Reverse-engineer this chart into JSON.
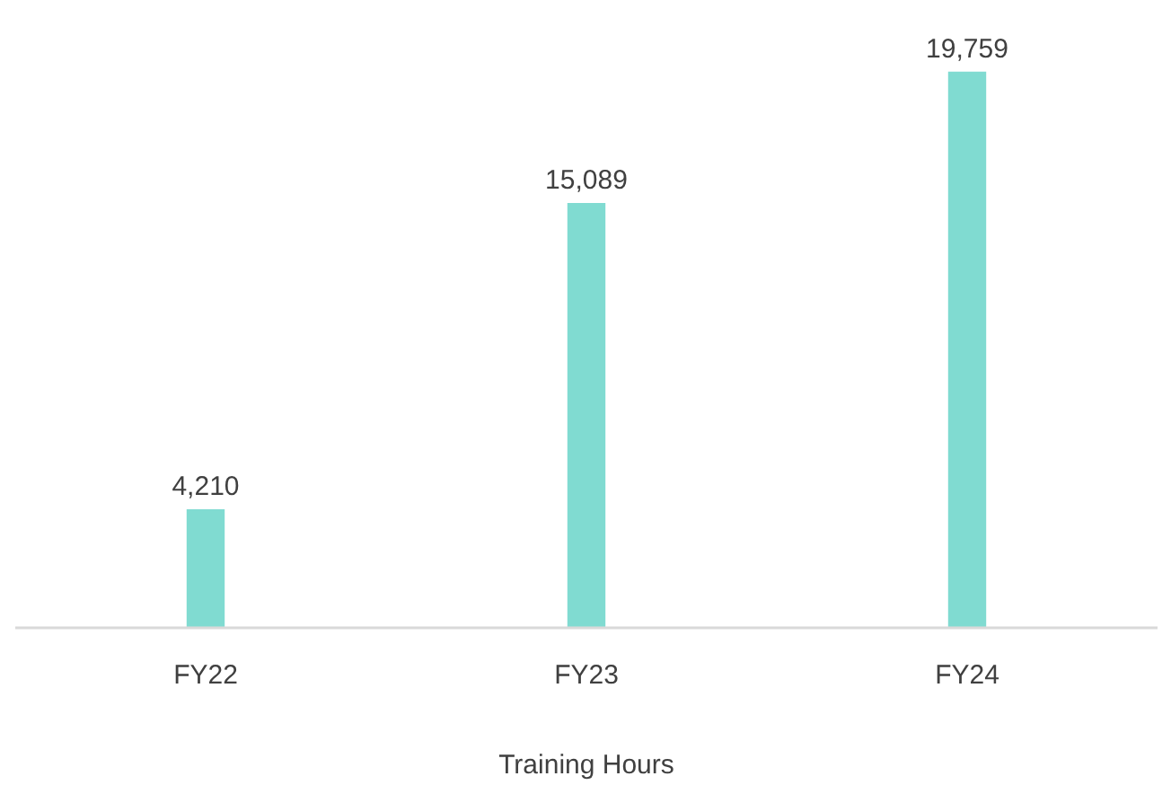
{
  "chart_data": {
    "type": "bar",
    "xlabel": "Training Hours",
    "categories": [
      "FY22",
      "FY23",
      "FY24"
    ],
    "values": [
      4210,
      15089,
      19759
    ],
    "value_labels": [
      "4,210",
      "15,089",
      "19,759"
    ],
    "color": "#80dbd1",
    "grid": false
  }
}
